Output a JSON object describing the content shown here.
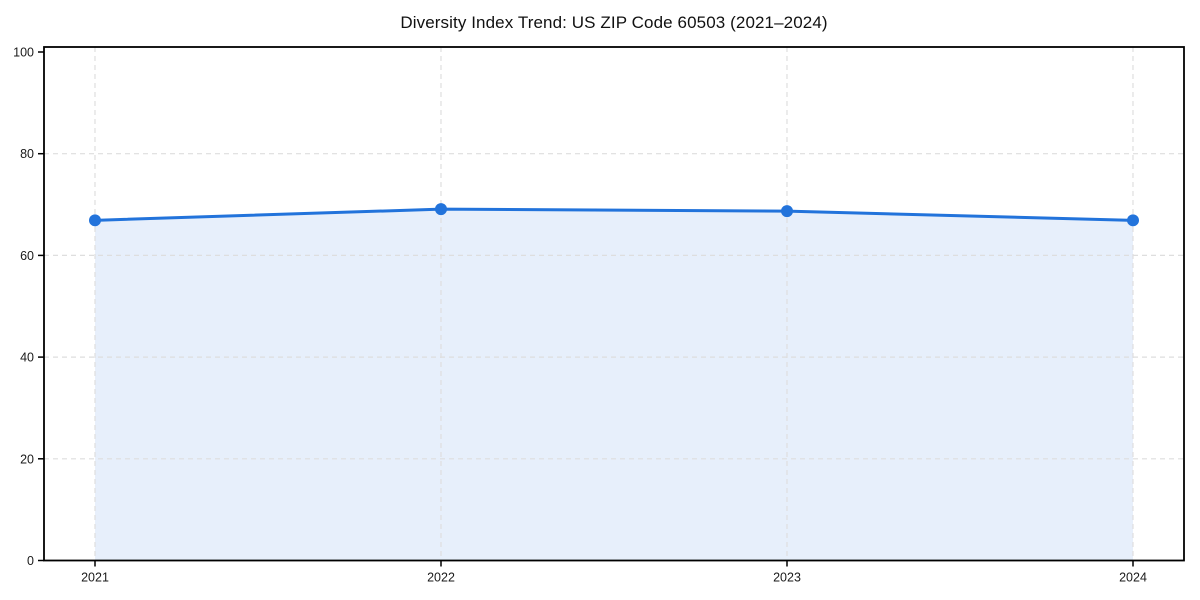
{
  "page": {
    "background": "#ffffff"
  },
  "chart_data": {
    "type": "area",
    "title": "Diversity Index Trend: US ZIP Code 60503 (2021–2024)",
    "categories": [
      "2021",
      "2022",
      "2023",
      "2024"
    ],
    "series": [
      {
        "name": "Diversity Index",
        "values": [
          66.9,
          69.1,
          68.7,
          66.9
        ]
      }
    ],
    "xlabel": "",
    "ylabel": "",
    "ylim": [
      0,
      100
    ],
    "yticks": [
      0,
      20,
      40,
      60,
      80,
      100
    ],
    "grid": {
      "show": true,
      "style": "dashed",
      "horizontal_at": [
        20,
        40,
        60,
        80
      ],
      "vertical_at_categories": true
    },
    "legend": "none",
    "marker": {
      "shape": "circle",
      "radius": 6
    },
    "line_width": 3,
    "colors": {
      "line": "#2273db",
      "marker": "#2273db",
      "area_fill": "#e7effb",
      "grid": "#dedede",
      "axis": "#000000",
      "tick_label": "#1a1a1a",
      "title": "#111111",
      "background": "#ffffff"
    }
  }
}
